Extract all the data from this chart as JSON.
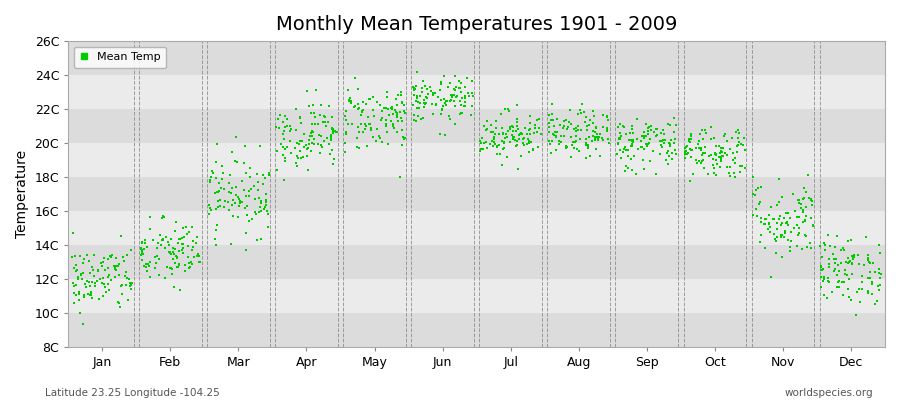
{
  "title": "Monthly Mean Temperatures 1901 - 2009",
  "ylabel": "Temperature",
  "xlabel_left": "Latitude 23.25 Longitude -104.25",
  "xlabel_right": "worldspecies.org",
  "legend_label": "Mean Temp",
  "background_color": "#ffffff",
  "plot_bg_light": "#ebebeb",
  "plot_bg_dark": "#dcdcdc",
  "dot_color": "#00cc00",
  "dot_size": 3,
  "ylim": [
    8,
    26
  ],
  "yticks": [
    8,
    10,
    12,
    14,
    16,
    18,
    20,
    22,
    24,
    26
  ],
  "ytick_labels": [
    "8C",
    "10C",
    "12C",
    "14C",
    "16C",
    "18C",
    "20C",
    "22C",
    "24C",
    "26C"
  ],
  "months": [
    "Jan",
    "Feb",
    "Mar",
    "Apr",
    "May",
    "Jun",
    "Jul",
    "Aug",
    "Sep",
    "Oct",
    "Nov",
    "Dec"
  ],
  "monthly_means": [
    12.0,
    13.5,
    17.0,
    20.5,
    21.5,
    22.5,
    20.5,
    20.5,
    20.0,
    19.5,
    15.5,
    12.5
  ],
  "monthly_stds": [
    1.0,
    1.0,
    1.2,
    1.0,
    1.0,
    0.7,
    0.7,
    0.7,
    0.8,
    0.8,
    1.2,
    1.0
  ],
  "n_years": 109,
  "seed": 42,
  "title_fontsize": 14,
  "tick_fontsize": 9,
  "ylabel_fontsize": 10
}
